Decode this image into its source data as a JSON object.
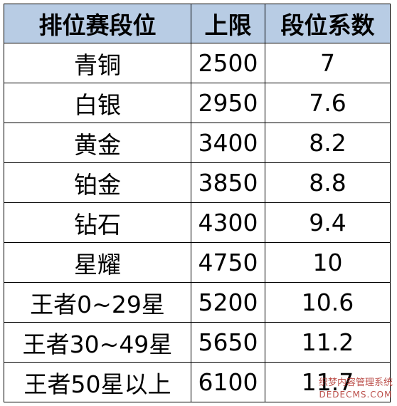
{
  "table": {
    "header": [
      "排位赛段位",
      "上限",
      "段位系数"
    ],
    "rows": [
      [
        "青铜",
        "2500",
        "7"
      ],
      [
        "白银",
        "2950",
        "7.6"
      ],
      [
        "黄金",
        "3400",
        "8.2"
      ],
      [
        "铂金",
        "3850",
        "8.8"
      ],
      [
        "钻石",
        "4300",
        "9.4"
      ],
      [
        "星耀",
        "4750",
        "10"
      ],
      [
        "王者0~29星",
        "5200",
        "10.6"
      ],
      [
        "王者30~49星",
        "5650",
        "11.2"
      ],
      [
        "王者50星以上",
        "6100",
        "11.7"
      ]
    ]
  },
  "watermark": {
    "line1": "织梦内容管理系统",
    "line2": "DEDECMS.COM"
  }
}
